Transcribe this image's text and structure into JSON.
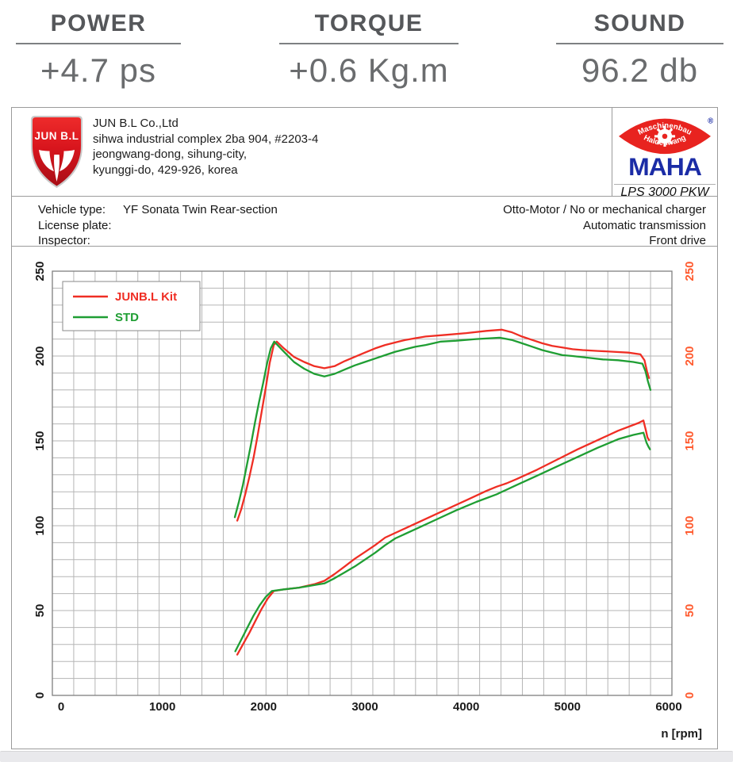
{
  "header": {
    "stats": [
      {
        "label": "POWER",
        "value": "+4.7 ps"
      },
      {
        "label": "TORQUE",
        "value": "+0.6 Kg.m"
      },
      {
        "label": "SOUND",
        "value": "96.2 db"
      }
    ]
  },
  "company": {
    "logo_text": "JUN B.L",
    "name": "JUN B.L Co.,Ltd",
    "address_lines": [
      "sihwa industrial complex 2ba 904, #2203-4",
      "jeongwang-dong, sihung-city,",
      "kyunggi-do, 429-926, korea"
    ]
  },
  "device": {
    "brand": "MAHA",
    "brand_reg": "®",
    "ellipse_top": "Maschinenbau",
    "ellipse_bottom": "Haldenwang",
    "model": "LPS 3000 PKW"
  },
  "vehicle": {
    "rows_left": [
      {
        "label": "Vehicle type:",
        "value": "YF Sonata Twin Rear-section"
      },
      {
        "label": "License plate:",
        "value": ""
      },
      {
        "label": "Inspector:",
        "value": ""
      }
    ],
    "rows_right": [
      "Otto-Motor / No or mechanical charger",
      "Automatic transmission",
      "Front drive"
    ]
  },
  "chart_data": {
    "type": "line",
    "title": "",
    "xlabel": "n [rpm]",
    "ylabel": "",
    "x_ticks": [
      0,
      1000,
      2000,
      3000,
      4000,
      5000,
      6000
    ],
    "y_ticks": [
      0,
      50,
      100,
      150,
      200,
      250
    ],
    "xlim": [
      -90,
      6060
    ],
    "ylim": [
      0,
      250
    ],
    "grid": "on",
    "legend_position": "top-left",
    "colors": {
      "grid": "#b5b5b5",
      "axis_border": "#7f7f7f",
      "left_axis_text": "#1a1a1a",
      "right_axis_text": "#ff5a2e",
      "legend_border": "#8a8a8a"
    },
    "legend": [
      {
        "label": "JUNB.L Kit",
        "color": "#ef2e24"
      },
      {
        "label": "STD",
        "color": "#1f9e33"
      }
    ],
    "series": [
      {
        "name": "junbl-kit-torque",
        "color": "#ef2e24",
        "points": [
          [
            1740,
            103
          ],
          [
            1780,
            110
          ],
          [
            1820,
            119
          ],
          [
            1860,
            129
          ],
          [
            1900,
            140
          ],
          [
            1940,
            153
          ],
          [
            1980,
            167
          ],
          [
            2020,
            181
          ],
          [
            2060,
            196
          ],
          [
            2100,
            206.5
          ],
          [
            2130,
            208.5
          ],
          [
            2200,
            204.5
          ],
          [
            2300,
            199.5
          ],
          [
            2400,
            196.5
          ],
          [
            2500,
            194
          ],
          [
            2600,
            192.8
          ],
          [
            2700,
            194
          ],
          [
            2800,
            197
          ],
          [
            2900,
            199.5
          ],
          [
            3000,
            202
          ],
          [
            3100,
            204.5
          ],
          [
            3200,
            206.5
          ],
          [
            3300,
            208
          ],
          [
            3400,
            209.5
          ],
          [
            3500,
            210.5
          ],
          [
            3600,
            211.5
          ],
          [
            3800,
            212.5
          ],
          [
            4000,
            213.5
          ],
          [
            4200,
            214.8
          ],
          [
            4350,
            215.5
          ],
          [
            4450,
            214
          ],
          [
            4550,
            211.5
          ],
          [
            4650,
            209.5
          ],
          [
            4750,
            207.5
          ],
          [
            4850,
            206
          ],
          [
            4950,
            205
          ],
          [
            5050,
            204
          ],
          [
            5150,
            203.5
          ],
          [
            5300,
            203
          ],
          [
            5450,
            202.5
          ],
          [
            5600,
            202
          ],
          [
            5720,
            201
          ],
          [
            5760,
            197.5
          ],
          [
            5785,
            191
          ],
          [
            5805,
            187
          ]
        ]
      },
      {
        "name": "std-torque",
        "color": "#1f9e33",
        "points": [
          [
            1715,
            105
          ],
          [
            1755,
            114
          ],
          [
            1795,
            124
          ],
          [
            1835,
            136
          ],
          [
            1875,
            148
          ],
          [
            1915,
            161
          ],
          [
            1955,
            173
          ],
          [
            1995,
            184
          ],
          [
            2035,
            196
          ],
          [
            2070,
            204.5
          ],
          [
            2105,
            208.5
          ],
          [
            2200,
            202.5
          ],
          [
            2300,
            196.5
          ],
          [
            2400,
            192.5
          ],
          [
            2500,
            189.5
          ],
          [
            2600,
            188
          ],
          [
            2700,
            189.5
          ],
          [
            2800,
            192
          ],
          [
            2900,
            194.5
          ],
          [
            3000,
            196.5
          ],
          [
            3100,
            198.5
          ],
          [
            3200,
            200.5
          ],
          [
            3300,
            202.5
          ],
          [
            3400,
            204
          ],
          [
            3500,
            205.5
          ],
          [
            3600,
            206.5
          ],
          [
            3750,
            208.5
          ],
          [
            3900,
            209
          ],
          [
            4100,
            210
          ],
          [
            4330,
            210.8
          ],
          [
            4450,
            209.5
          ],
          [
            4550,
            207.5
          ],
          [
            4650,
            205.5
          ],
          [
            4750,
            203.5
          ],
          [
            4850,
            202
          ],
          [
            4950,
            200.5
          ],
          [
            5050,
            200
          ],
          [
            5200,
            199
          ],
          [
            5350,
            198
          ],
          [
            5500,
            197.5
          ],
          [
            5650,
            196.5
          ],
          [
            5740,
            195.5
          ],
          [
            5770,
            191
          ],
          [
            5795,
            185
          ],
          [
            5820,
            180
          ]
        ]
      },
      {
        "name": "junbl-kit-power",
        "color": "#ef2e24",
        "points": [
          [
            1740,
            24
          ],
          [
            1800,
            30.5
          ],
          [
            1860,
            37
          ],
          [
            1920,
            44
          ],
          [
            1980,
            51
          ],
          [
            2040,
            57
          ],
          [
            2100,
            61.5
          ],
          [
            2200,
            62.5
          ],
          [
            2350,
            63.5
          ],
          [
            2500,
            65.5
          ],
          [
            2600,
            67.5
          ],
          [
            2700,
            71.5
          ],
          [
            2800,
            76
          ],
          [
            2900,
            80.5
          ],
          [
            3000,
            84.5
          ],
          [
            3100,
            88.5
          ],
          [
            3200,
            93
          ],
          [
            3400,
            98.5
          ],
          [
            3600,
            104
          ],
          [
            3800,
            109.5
          ],
          [
            4000,
            115
          ],
          [
            4200,
            120.5
          ],
          [
            4300,
            123
          ],
          [
            4400,
            125
          ],
          [
            4500,
            127.5
          ],
          [
            4700,
            133
          ],
          [
            4900,
            139
          ],
          [
            5100,
            145
          ],
          [
            5300,
            150.5
          ],
          [
            5500,
            156
          ],
          [
            5700,
            160.5
          ],
          [
            5750,
            162
          ],
          [
            5775,
            156
          ],
          [
            5790,
            152
          ],
          [
            5805,
            150.5
          ]
        ]
      },
      {
        "name": "std-power",
        "color": "#1f9e33",
        "points": [
          [
            1720,
            26
          ],
          [
            1780,
            33
          ],
          [
            1840,
            40
          ],
          [
            1900,
            47
          ],
          [
            1960,
            53
          ],
          [
            2020,
            58
          ],
          [
            2080,
            61.5
          ],
          [
            2200,
            62.5
          ],
          [
            2350,
            63.5
          ],
          [
            2500,
            65
          ],
          [
            2600,
            66
          ],
          [
            2700,
            69
          ],
          [
            2800,
            72.5
          ],
          [
            2900,
            76
          ],
          [
            3000,
            80
          ],
          [
            3100,
            84
          ],
          [
            3200,
            88.5
          ],
          [
            3300,
            92.5
          ],
          [
            3500,
            98
          ],
          [
            3700,
            103.5
          ],
          [
            3900,
            109
          ],
          [
            4100,
            114
          ],
          [
            4300,
            118.5
          ],
          [
            4500,
            124
          ],
          [
            4700,
            129.5
          ],
          [
            4900,
            135
          ],
          [
            5100,
            140.5
          ],
          [
            5300,
            146
          ],
          [
            5500,
            151
          ],
          [
            5650,
            153.5
          ],
          [
            5750,
            154.8
          ],
          [
            5780,
            149
          ],
          [
            5800,
            146.5
          ],
          [
            5815,
            145
          ]
        ]
      }
    ]
  }
}
